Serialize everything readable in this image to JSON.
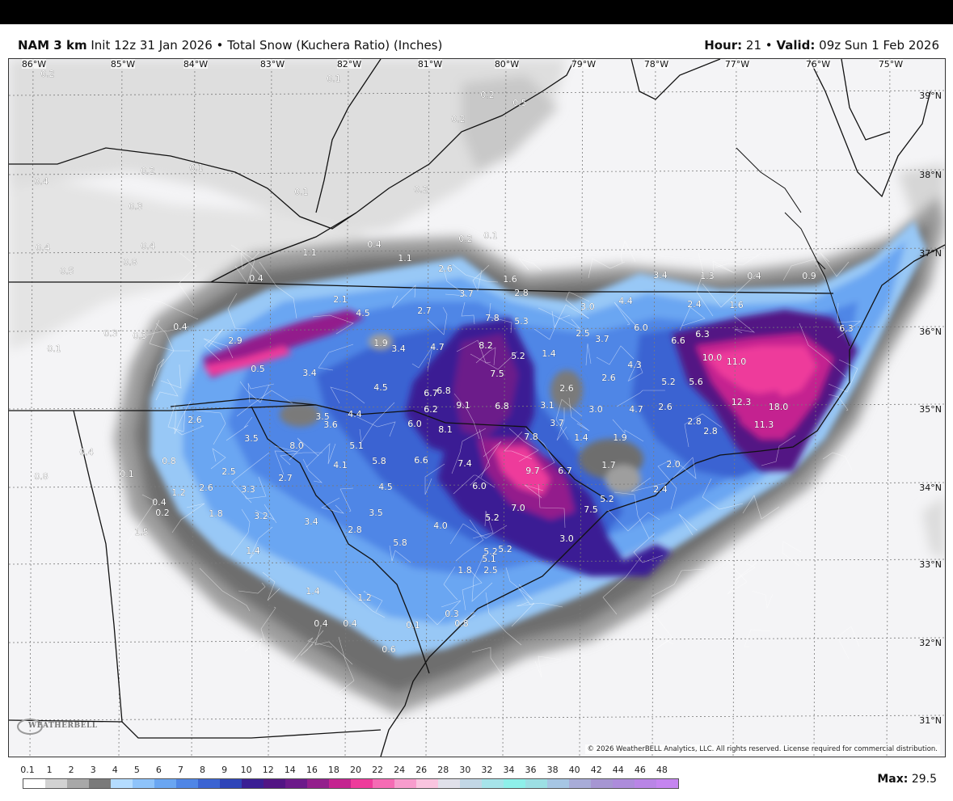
{
  "header": {
    "model": "NAM 3 km",
    "init": "Init 12z 31 Jan 2026",
    "product": "Total Snow (Kuchera Ratio) (Inches)",
    "hour_label": "Hour:",
    "hour": "21",
    "valid_label": "Valid:",
    "valid": "09z Sun 1 Feb 2026"
  },
  "map": {
    "longitude_labels": [
      "86°W",
      "85°W",
      "84°W",
      "83°W",
      "82°W",
      "81°W",
      "80°W",
      "79°W",
      "78°W",
      "77°W",
      "76°W",
      "75°W"
    ],
    "latitude_labels": [
      "39°N",
      "38°N",
      "37°N",
      "36°N",
      "35°N",
      "34°N",
      "33°N",
      "32°N",
      "31°N"
    ],
    "value_labels": [
      "0.2",
      "0.1",
      "0.2",
      "0.5",
      "0.2",
      "0.4",
      "0.2",
      "0.1",
      "0.1",
      "0.2",
      "0.3",
      "0.4",
      "0.4",
      "0.2",
      "0.1",
      "0.4",
      "0.5",
      "0.8",
      "1.1",
      "1.1",
      "2.6",
      "1.6",
      "0.9",
      "3.4",
      "1.3",
      "0.4",
      "0.4",
      "3.7",
      "2.8",
      "4.4",
      "2.4",
      "1.6",
      "2.1",
      "4.5",
      "2.7",
      "7.8",
      "5.3",
      "3.0",
      "6.0",
      "6.6",
      "6.3",
      "2.9",
      "1.9",
      "3.4",
      "4.7",
      "8.2",
      "5.2",
      "1.4",
      "2.5",
      "3.7",
      "10.0",
      "11.0",
      "6.3",
      "0.5",
      "3.4",
      "7.5",
      "2.6",
      "4.3",
      "5.2",
      "5.6",
      "4.5",
      "6.7",
      "6.8",
      "6.2",
      "9.1",
      "6.8",
      "3.1",
      "2.6",
      "3.0",
      "4.7",
      "2.6",
      "12.3",
      "18.0",
      "2.6",
      "4.4",
      "3.5",
      "3.6",
      "6.0",
      "8.1",
      "3.7",
      "7.8",
      "1.4",
      "1.9",
      "2.8",
      "2.8",
      "11.3",
      "3.5",
      "8.0",
      "5.1",
      "5.8",
      "6.6",
      "7.4",
      "9.7",
      "6.7",
      "1.7",
      "2.0",
      "0.8",
      "4.1",
      "2.5",
      "2.7",
      "4.5",
      "6.0",
      "2.4",
      "5.2",
      "1.2",
      "2.6",
      "3.3",
      "7.0",
      "7.5",
      "1.8",
      "3.2",
      "3.4",
      "3.5",
      "5.2",
      "4.0",
      "2.8",
      "5.8",
      "3.0",
      "5.2",
      "1.4",
      "5.2",
      "5.1",
      "2.5",
      "1.8",
      "1.4",
      "1.2",
      "0.3",
      "0.8",
      "1.5",
      "0.4",
      "0.1",
      "0.4",
      "0.6",
      "0.8",
      "0.4",
      "0.1",
      "0.3",
      "0.3",
      "0.4",
      "0.1",
      "0.4",
      "0.2"
    ],
    "copyright": "© 2026 WeatherBELL Analytics, LLC. All rights reserved. License required for commercial distribution.",
    "logo_text": "WEATHERBELL"
  },
  "legend": {
    "ticks": [
      "0.1",
      "1",
      "2",
      "3",
      "4",
      "5",
      "6",
      "7",
      "8",
      "9",
      "10",
      "12",
      "14",
      "16",
      "18",
      "20",
      "22",
      "24",
      "26",
      "28",
      "30",
      "32",
      "34",
      "36",
      "38",
      "40",
      "42",
      "44",
      "46",
      "48"
    ],
    "colors": [
      "#ffffff",
      "#d2d2d2",
      "#a8a8a8",
      "#7a7a7a",
      "#b4dcff",
      "#8ec3fa",
      "#6aa6f2",
      "#4f86e6",
      "#3b64d2",
      "#2e44b8",
      "#3a1e94",
      "#521584",
      "#6c1a8a",
      "#931f8c",
      "#c42490",
      "#ee3b9b",
      "#f56bb4",
      "#f79ccd",
      "#f9c4df",
      "#e0e0ea",
      "#c2d7e6",
      "#a6e4ea",
      "#8ef0ea",
      "#9cdfe4",
      "#a6c6e4",
      "#a8acd8",
      "#a696d2",
      "#ad8cdb",
      "#b985e6",
      "#c585f0"
    ],
    "max_label": "Max:",
    "max_value": "29.5"
  }
}
